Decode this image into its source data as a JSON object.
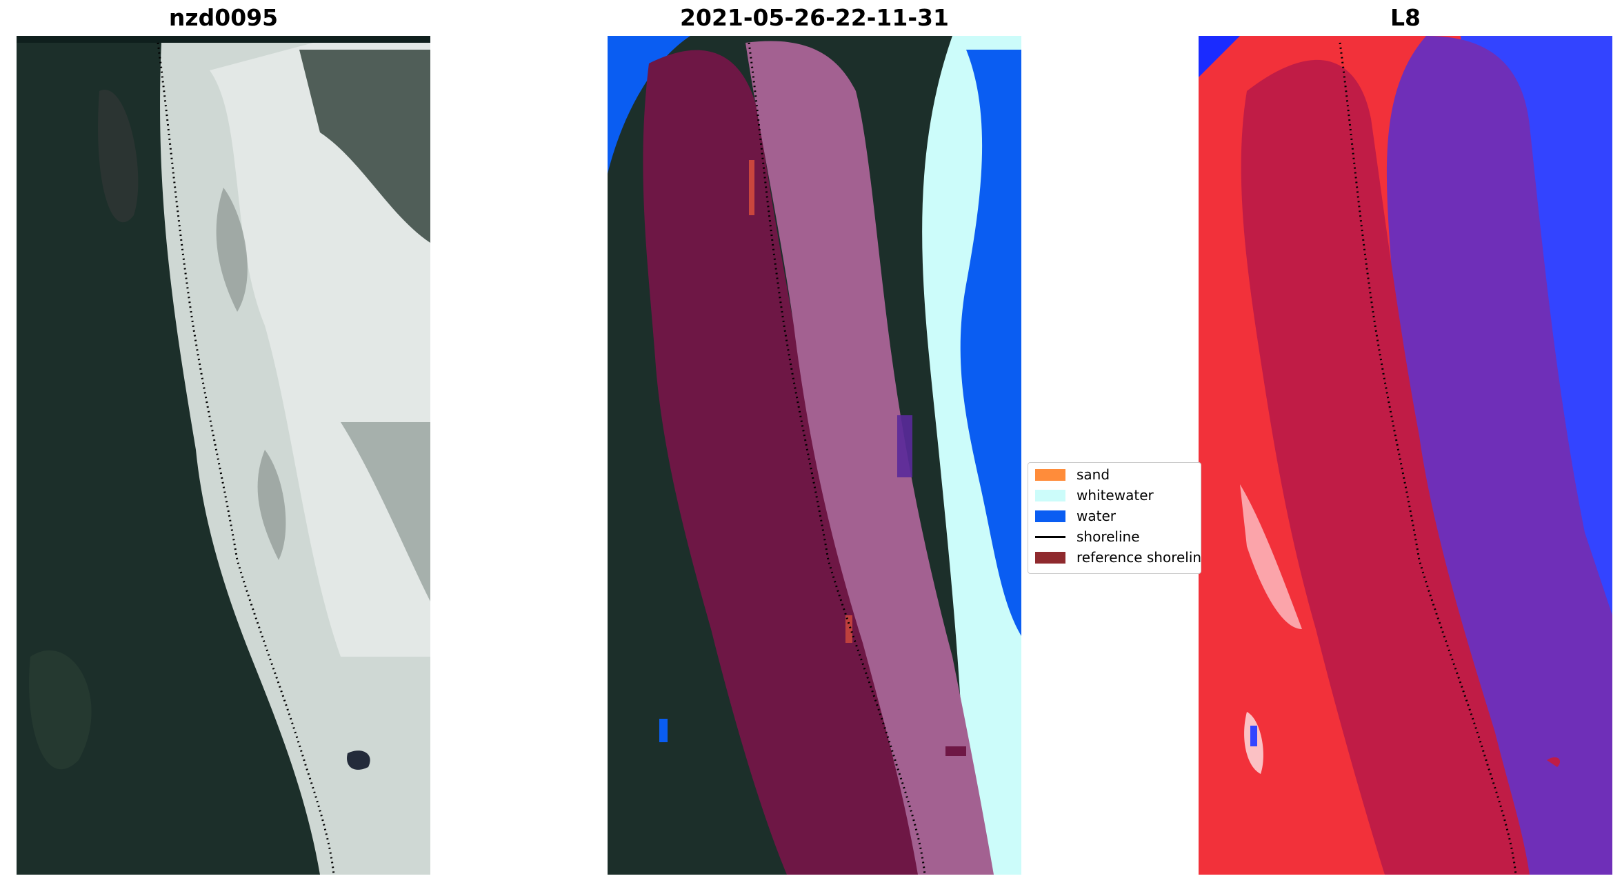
{
  "panels": [
    {
      "title": "nzd0095"
    },
    {
      "title": "2021-05-26-22-11-31"
    },
    {
      "title": "L8"
    }
  ],
  "legend": {
    "items": [
      {
        "label": "sand",
        "color": "#ff8c3a"
      },
      {
        "label": "whitewater",
        "color": "#ccfcfa"
      },
      {
        "label": "water",
        "color": "#0a5df2"
      },
      {
        "label": "shoreline",
        "color": "#000000"
      },
      {
        "label": "reference shoreline",
        "color": "#8f2a2e"
      }
    ]
  },
  "colors": {
    "vegetation": "#1c2f2a",
    "foam": "#dfe6e4",
    "reference_buffer": "#6e1745",
    "class_overlay": "#a36191",
    "water": "#0a5df2",
    "whitewater": "#ccfcfa",
    "l8_red": "#f2313a",
    "l8_crimson": "#c01c46",
    "l8_purple": "#6f2fb8",
    "l8_blue": "#3344ff"
  }
}
